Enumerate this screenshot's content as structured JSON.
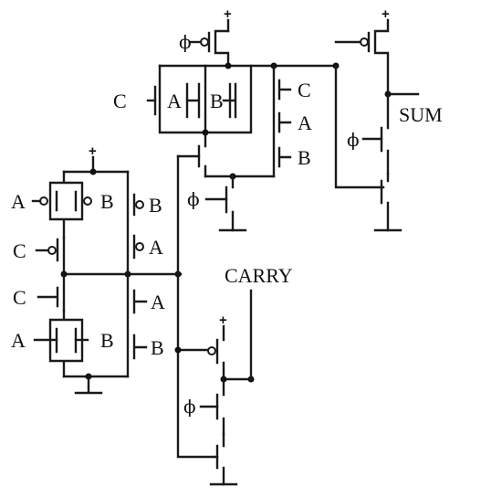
{
  "labels": {
    "sum": "SUM",
    "carry": "CARRY",
    "phi": "ϕ",
    "supply": "+",
    "a": "A",
    "b": "B",
    "c": "C"
  }
}
